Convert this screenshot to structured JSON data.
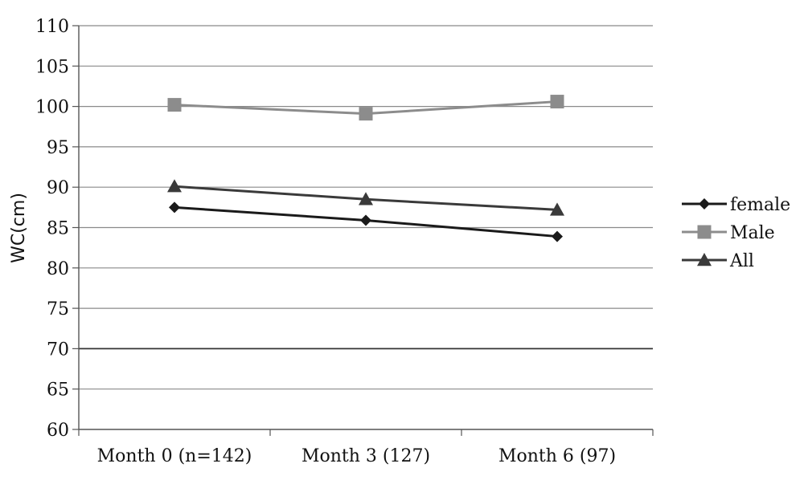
{
  "chart_data": {
    "type": "line",
    "title": "",
    "xlabel": "",
    "ylabel": "WC(cm)",
    "categories": [
      "Month 0 (n=142)",
      "Month 3 (127)",
      "Month 6 (97)"
    ],
    "ylim": [
      60,
      110
    ],
    "yticks": [
      60,
      65,
      70,
      75,
      80,
      85,
      90,
      95,
      100,
      105,
      110
    ],
    "grid": true,
    "legend_position": "right",
    "series": [
      {
        "name": "female",
        "values": [
          87.5,
          85.9,
          83.9
        ],
        "color": "#1a1a1a",
        "marker": "diamond"
      },
      {
        "name": "Male",
        "values": [
          100.2,
          99.1,
          100.6
        ],
        "color": "#8c8c8c",
        "marker": "square"
      },
      {
        "name": "All",
        "values": [
          90.1,
          88.5,
          87.2
        ],
        "color": "#3a3a3a",
        "marker": "triangle"
      }
    ]
  }
}
